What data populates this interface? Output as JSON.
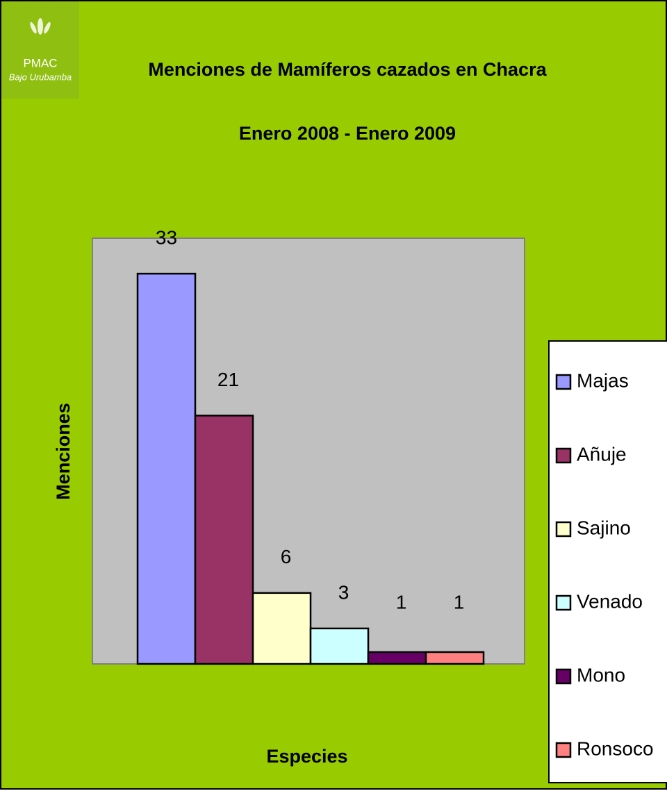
{
  "logo": {
    "name": "PMAC",
    "tagline": "Bajo Urubamba"
  },
  "chart_data": {
    "type": "bar",
    "title": "Menciones de Mamíferos cazados en Chacra",
    "subtitle": "Enero 2008 - Enero 2009",
    "xlabel": "Especies",
    "ylabel": "Menciones",
    "categories": [
      "Majas",
      "Añuje",
      "Sajino",
      "Venado",
      "Mono",
      "Ronsoco"
    ],
    "values": [
      33,
      21,
      6,
      3,
      1,
      1
    ],
    "colors": [
      "#9999ff",
      "#993366",
      "#ffffcc",
      "#ccffff",
      "#660066",
      "#ff8080"
    ],
    "ylim": [
      0,
      36
    ],
    "legend": "right"
  }
}
